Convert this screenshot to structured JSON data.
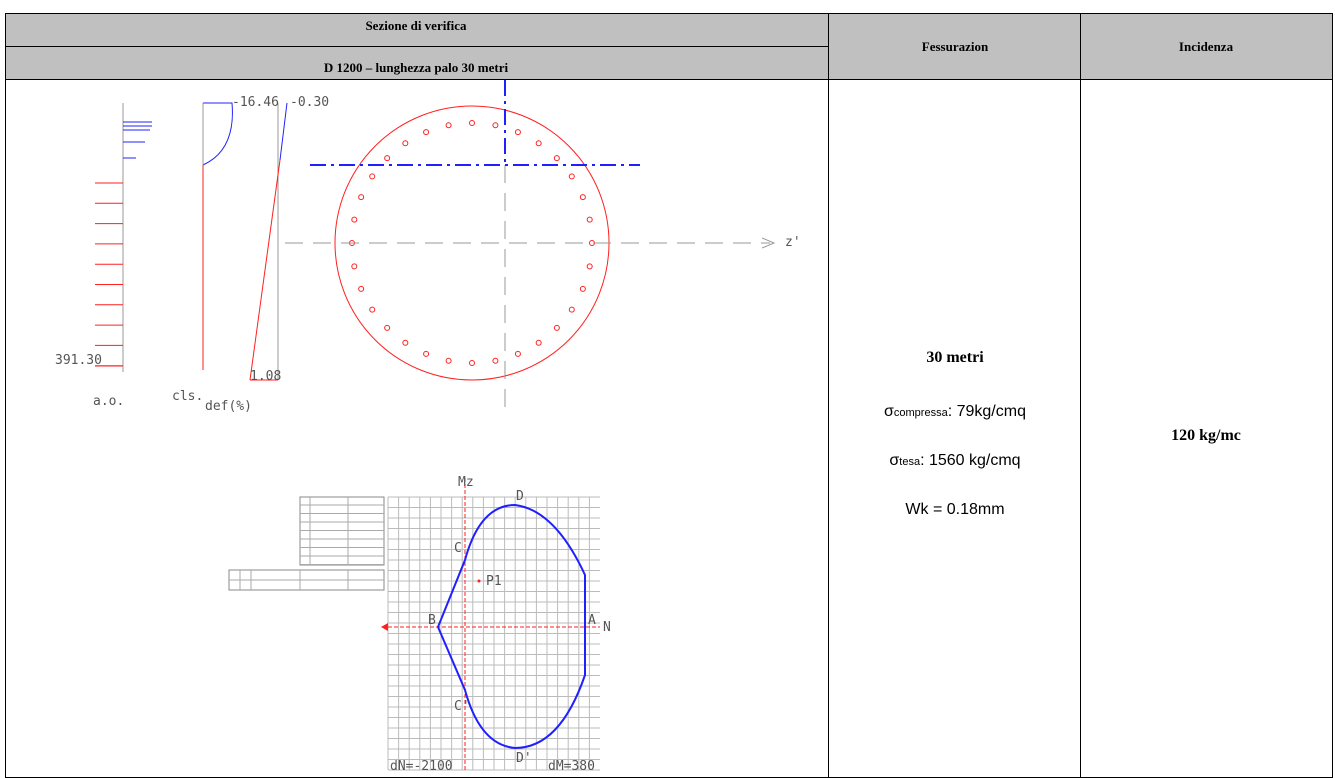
{
  "header": {
    "section_title": "Sezione di verifica",
    "section_subtitle": "D 1200 – lunghezza palo 30 metri",
    "col2": "Fessurazion",
    "col3": "Incidenza"
  },
  "figure": {
    "ao_label": "a.o.",
    "ao_value": "391.30",
    "cls_label": "cls.",
    "def_label": "def(%)",
    "cls_top": "-16.46",
    "def_top": "-0.30",
    "def_bottom": "1.08",
    "z_axis": "z'",
    "mz_axis": "Mz",
    "n_axis": "N",
    "point_a": "A",
    "point_b": "B",
    "point_c": "C",
    "point_c2": "C'",
    "point_d": "D",
    "point_d2": "D'",
    "point_p1": "P1",
    "dn": "dN=-2100",
    "dm": "dM=380"
  },
  "fessurazione": {
    "length": "30 metri",
    "compressa": {
      "symbol": "σ",
      "sub": "compressa",
      "text": ": 79kg/cmq"
    },
    "tesa": {
      "symbol": "σ",
      "sub": "tesa",
      "text": ": 1560 kg/cmq"
    },
    "wk": "Wk = 0.18mm"
  },
  "incidenza": "120 kg/mc"
}
